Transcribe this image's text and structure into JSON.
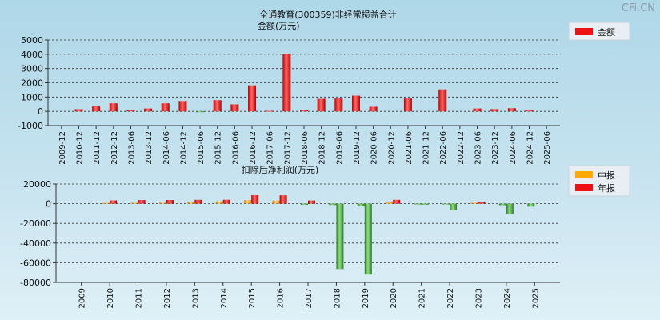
{
  "watermark": "CFi.CN",
  "chart_data": [
    {
      "type": "bar",
      "title": "全通教育(300359)非经常损益合计",
      "subtitle": "金额(万元)",
      "legend": [
        {
          "name": "金额",
          "color": "#ee1111"
        }
      ],
      "legend_position": "top-right",
      "grid": true,
      "ylim": [
        -1000,
        5000
      ],
      "yticks": [
        "5000",
        "4000",
        "3000",
        "2000",
        "1000",
        "0",
        "-1000"
      ],
      "categories": [
        "2009-12",
        "2010-12",
        "2011-12",
        "2012-12",
        "2013-06",
        "2013-12",
        "2014-06",
        "2014-12",
        "2015-06",
        "2015-12",
        "2016-06",
        "2016-12",
        "2017-06",
        "2017-12",
        "2018-06",
        "2018-12",
        "2019-06",
        "2019-12",
        "2020-06",
        "2020-12",
        "2021-06",
        "2021-12",
        "2022-06",
        "2022-12",
        "2023-06",
        "2023-12",
        "2024-06",
        "2024-12",
        "2025-06"
      ],
      "series": [
        {
          "name": "金额",
          "color": "#ee1111",
          "values": [
            0,
            150,
            340,
            560,
            80,
            200,
            560,
            720,
            -60,
            780,
            490,
            1820,
            40,
            4020,
            90,
            880,
            900,
            1100,
            320,
            0,
            900,
            0,
            1540,
            0,
            200,
            160,
            220,
            60,
            0
          ]
        }
      ]
    },
    {
      "type": "bar",
      "title": "扣除后净利润(万元)",
      "legend": [
        {
          "name": "中报",
          "color": "#ffaa00"
        },
        {
          "name": "年报",
          "color": "#ee1111"
        }
      ],
      "legend_position": "top-right",
      "grid": true,
      "ylim": [
        -80000,
        20000
      ],
      "yticks": [
        "20000",
        "0",
        "-20000",
        "-40000",
        "-60000",
        "-80000"
      ],
      "categories": [
        "2009",
        "2010",
        "2011",
        "2012",
        "2013",
        "2014",
        "2015",
        "2016",
        "2017",
        "2018",
        "2019",
        "2020",
        "2021",
        "2022",
        "2023",
        "2024",
        "2025"
      ],
      "series": [
        {
          "name": "中报",
          "values": [
            null,
            800,
            900,
            1000,
            1800,
            2400,
            3600,
            3100,
            -1200,
            -1400,
            -2800,
            1400,
            -400,
            -700,
            1000,
            -1600,
            -3000
          ]
        },
        {
          "name": "年报",
          "values": [
            null,
            3300,
            3700,
            3700,
            3900,
            4000,
            8600,
            8500,
            3200,
            -66500,
            -72000,
            3900,
            -1100,
            -6500,
            1300,
            -10500,
            null
          ]
        }
      ]
    }
  ]
}
